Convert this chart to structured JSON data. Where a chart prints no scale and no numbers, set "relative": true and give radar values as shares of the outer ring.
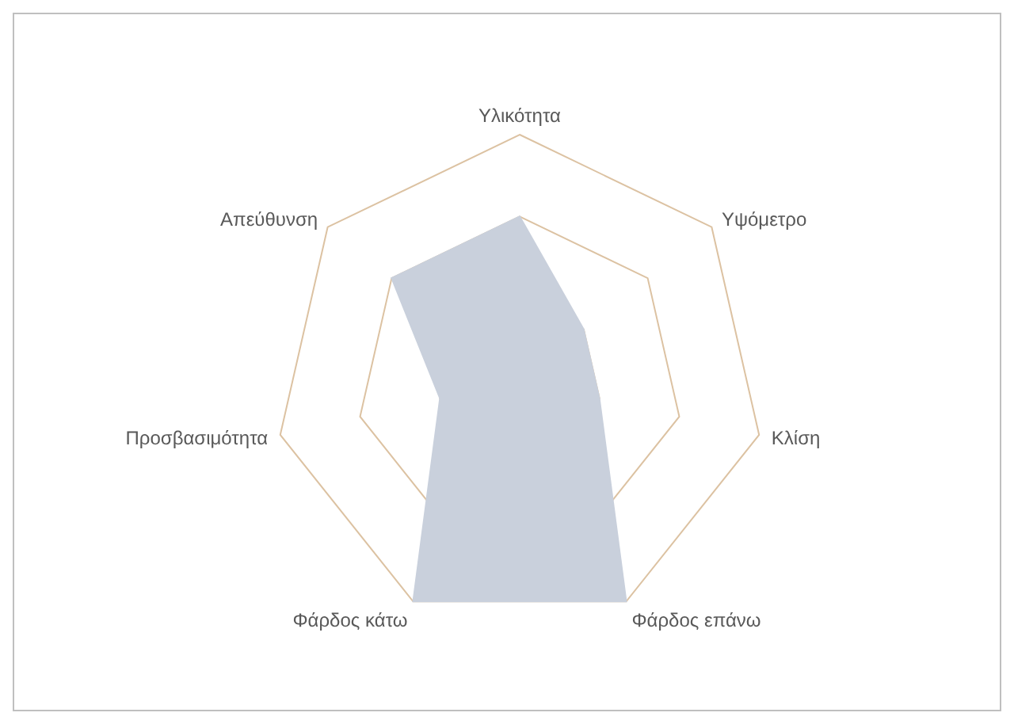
{
  "chart_data": {
    "type": "radar",
    "relative": true,
    "grid": true,
    "legend": false,
    "marker": "none",
    "categories": [
      "Υλικότητα",
      "Υψόμετρο",
      "Κλίση",
      "Φάρδος επάνω",
      "Φάρδος κάτω",
      "Προσβασιμότητα",
      "Απεύθυνση"
    ],
    "series": [
      {
        "color": "#c9d0dc",
        "values": [
          0.667,
          0.333,
          0.333,
          1,
          1,
          0.333,
          0.667
        ]
      }
    ]
  }
}
